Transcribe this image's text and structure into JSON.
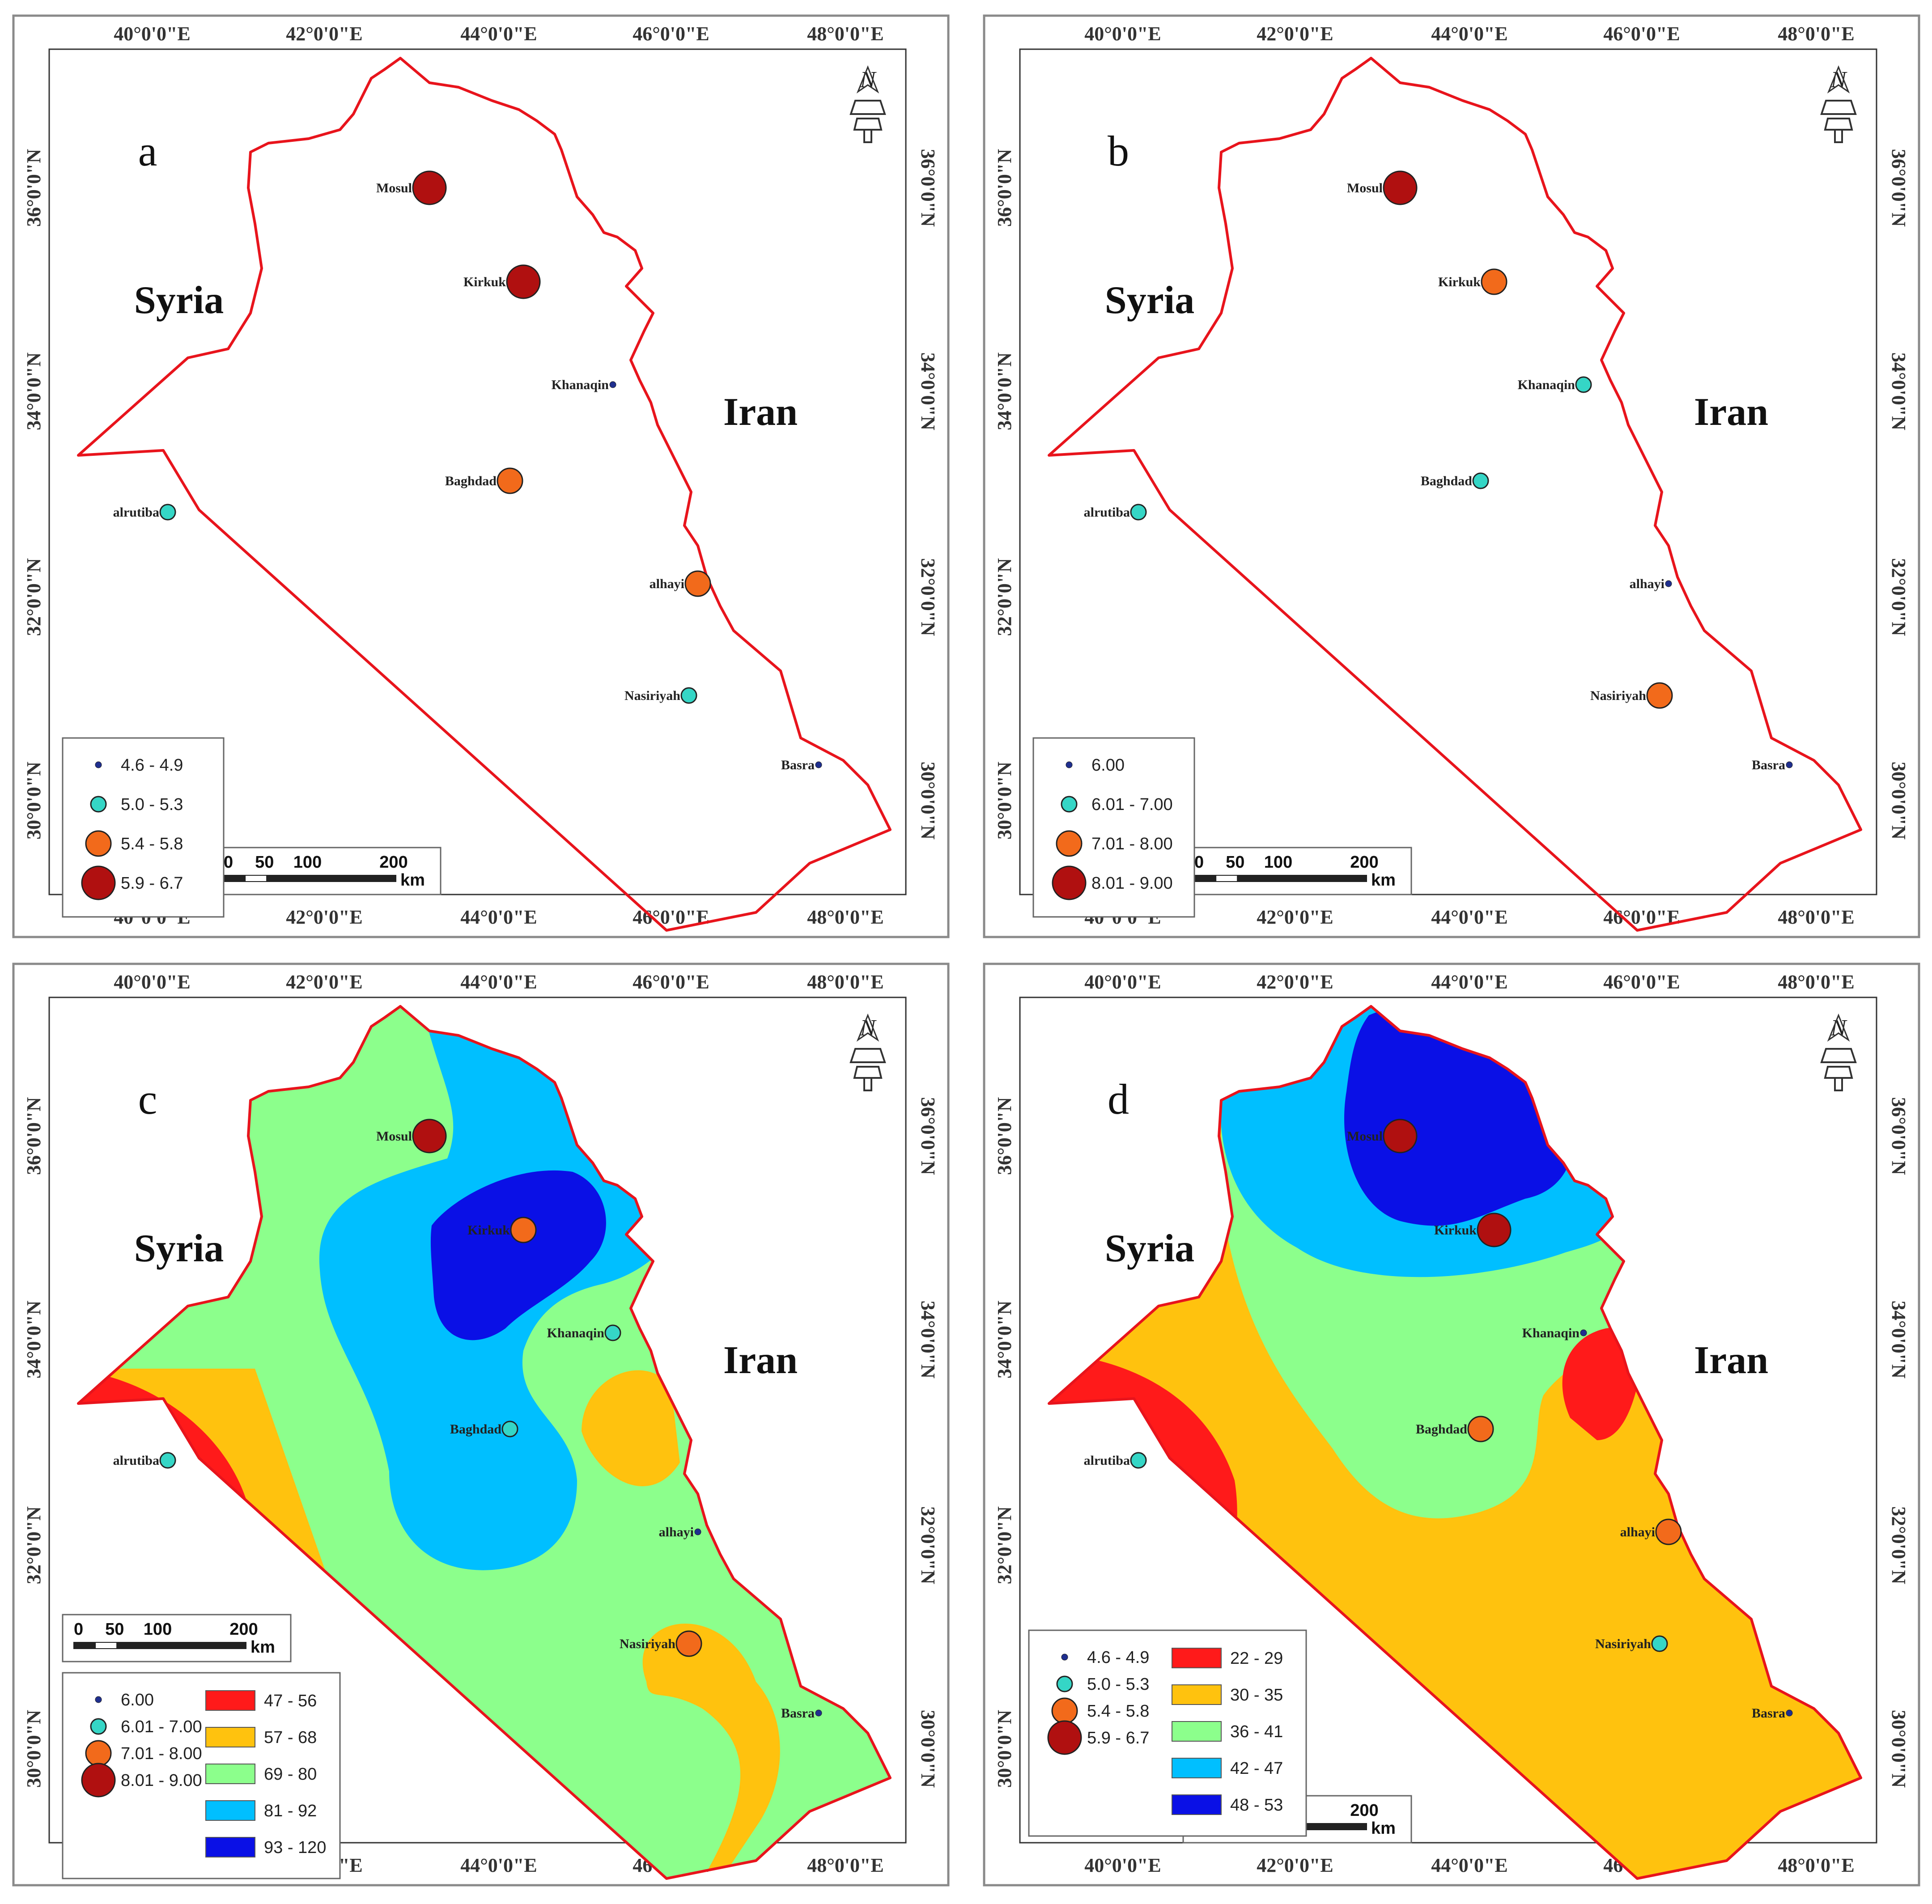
{
  "lon_ticks": [
    "40°0'0\"E",
    "42°0'0\"E",
    "44°0'0\"E",
    "46°0'0\"E",
    "48°0'0\"E"
  ],
  "lat_ticks": [
    "36°0'0\"N",
    "34°0'0\"N",
    "32°0'0\"N",
    "30°0'0\"N"
  ],
  "countries": {
    "syria": "Syria",
    "iran": "Iran"
  },
  "north_arrow": {
    "letter": "N",
    "icon": "north-arrow-icon"
  },
  "scale_bar": {
    "numbers": [
      "0",
      "50",
      "100",
      "200"
    ],
    "unit": "km"
  },
  "stations": [
    "Mosul",
    "Kirkuk",
    "Khanaqin",
    "Baghdad",
    "alrutiba",
    "alhayi",
    "Nasiriyah",
    "Basra"
  ],
  "symbol_colors": {
    "class1": "#1f2f8f",
    "class2": "#35d6c6",
    "class3": "#f26a1b",
    "class4": "#b01010"
  },
  "zone_colors": {
    "red": "#ff1a1a",
    "orange": "#ffc20e",
    "green": "#8cff8c",
    "cyan": "#00bfff",
    "blue": "#0a10e6"
  },
  "panels": [
    {
      "letter": "a",
      "point_legend": [
        "4.6 - 4.9",
        "5.0 - 5.3",
        "5.4 - 5.8",
        "5.9 - 6.7"
      ],
      "zone_legend": [],
      "station_classes": [
        4,
        4,
        1,
        3,
        2,
        3,
        2,
        1
      ]
    },
    {
      "letter": "b",
      "point_legend": [
        "6.00",
        "6.01 - 7.00",
        "7.01 - 8.00",
        "8.01 - 9.00"
      ],
      "zone_legend": [],
      "station_classes": [
        4,
        3,
        2,
        2,
        2,
        1,
        3,
        1
      ]
    },
    {
      "letter": "c",
      "point_legend": [
        "6.00",
        "6.01 - 7.00",
        "7.01 - 8.00",
        "8.01 - 9.00"
      ],
      "zone_legend": [
        "47 - 56",
        "57 - 68",
        "69 - 80",
        "81 - 92",
        "93 - 120"
      ],
      "station_classes": [
        4,
        3,
        2,
        2,
        2,
        1,
        3,
        1
      ]
    },
    {
      "letter": "d",
      "point_legend": [
        "4.6 - 4.9",
        "5.0 - 5.3",
        "5.4 - 5.8",
        "5.9 - 6.7"
      ],
      "zone_legend": [
        "22 - 29",
        "30 - 35",
        "36 - 41",
        "42 - 47",
        "48 - 53"
      ],
      "station_classes": [
        4,
        4,
        1,
        3,
        2,
        3,
        2,
        1
      ]
    }
  ]
}
